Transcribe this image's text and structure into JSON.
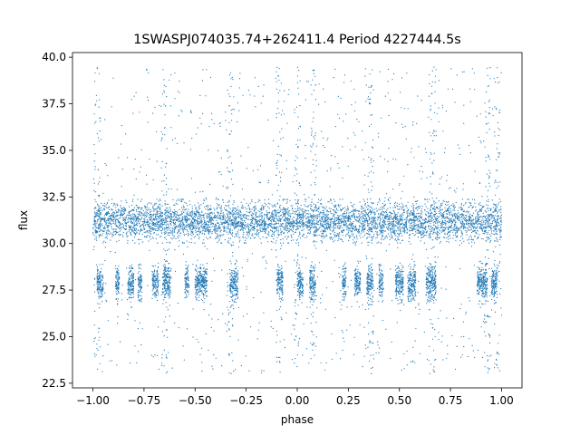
{
  "chart_data": {
    "type": "scatter",
    "title": "1SWASPJ074035.74+262411.4 Period 4227444.5s",
    "xlabel": "phase",
    "ylabel": "flux",
    "xlim": [
      -1.1,
      1.1
    ],
    "ylim": [
      22.25,
      40.25
    ],
    "x_ticks": [
      -1.0,
      -0.75,
      -0.5,
      -0.25,
      0.0,
      0.25,
      0.5,
      0.75,
      1.0
    ],
    "x_tick_labels": [
      "−1.00",
      "−0.75",
      "−0.50",
      "−0.25",
      "0.00",
      "0.25",
      "0.50",
      "0.75",
      "1.00"
    ],
    "y_ticks": [
      22.5,
      25.0,
      27.5,
      30.0,
      32.5,
      35.0,
      37.5,
      40.0
    ],
    "y_tick_labels": [
      "22.5",
      "25.0",
      "27.5",
      "30.0",
      "32.5",
      "35.0",
      "37.5",
      "40.0"
    ],
    "grid": false,
    "marker_color": "#1f77b4",
    "series": [
      {
        "main_band": {
          "x_range": [
            -1.0,
            1.0
          ],
          "y_center": 31.2,
          "y_spread": 0.9
        },
        "lower_band_segments": [
          [
            -0.98,
            -0.95
          ],
          [
            -0.89,
            -0.87
          ],
          [
            -0.83,
            -0.8
          ],
          [
            -0.78,
            -0.76
          ],
          [
            -0.71,
            -0.68
          ],
          [
            -0.66,
            -0.62
          ],
          [
            -0.55,
            -0.53
          ],
          [
            -0.5,
            -0.44
          ],
          [
            -0.33,
            -0.29
          ],
          [
            -0.1,
            -0.07
          ],
          [
            0.0,
            0.03
          ],
          [
            0.06,
            0.09
          ],
          [
            0.22,
            0.24
          ],
          [
            0.28,
            0.31
          ],
          [
            0.34,
            0.37
          ],
          [
            0.4,
            0.42
          ],
          [
            0.48,
            0.52
          ],
          [
            0.54,
            0.58
          ],
          [
            0.63,
            0.68
          ],
          [
            0.88,
            0.93
          ],
          [
            0.95,
            0.98
          ]
        ],
        "lower_band_y": 27.9,
        "y_min": 23.0,
        "y_max": 39.5
      }
    ]
  }
}
